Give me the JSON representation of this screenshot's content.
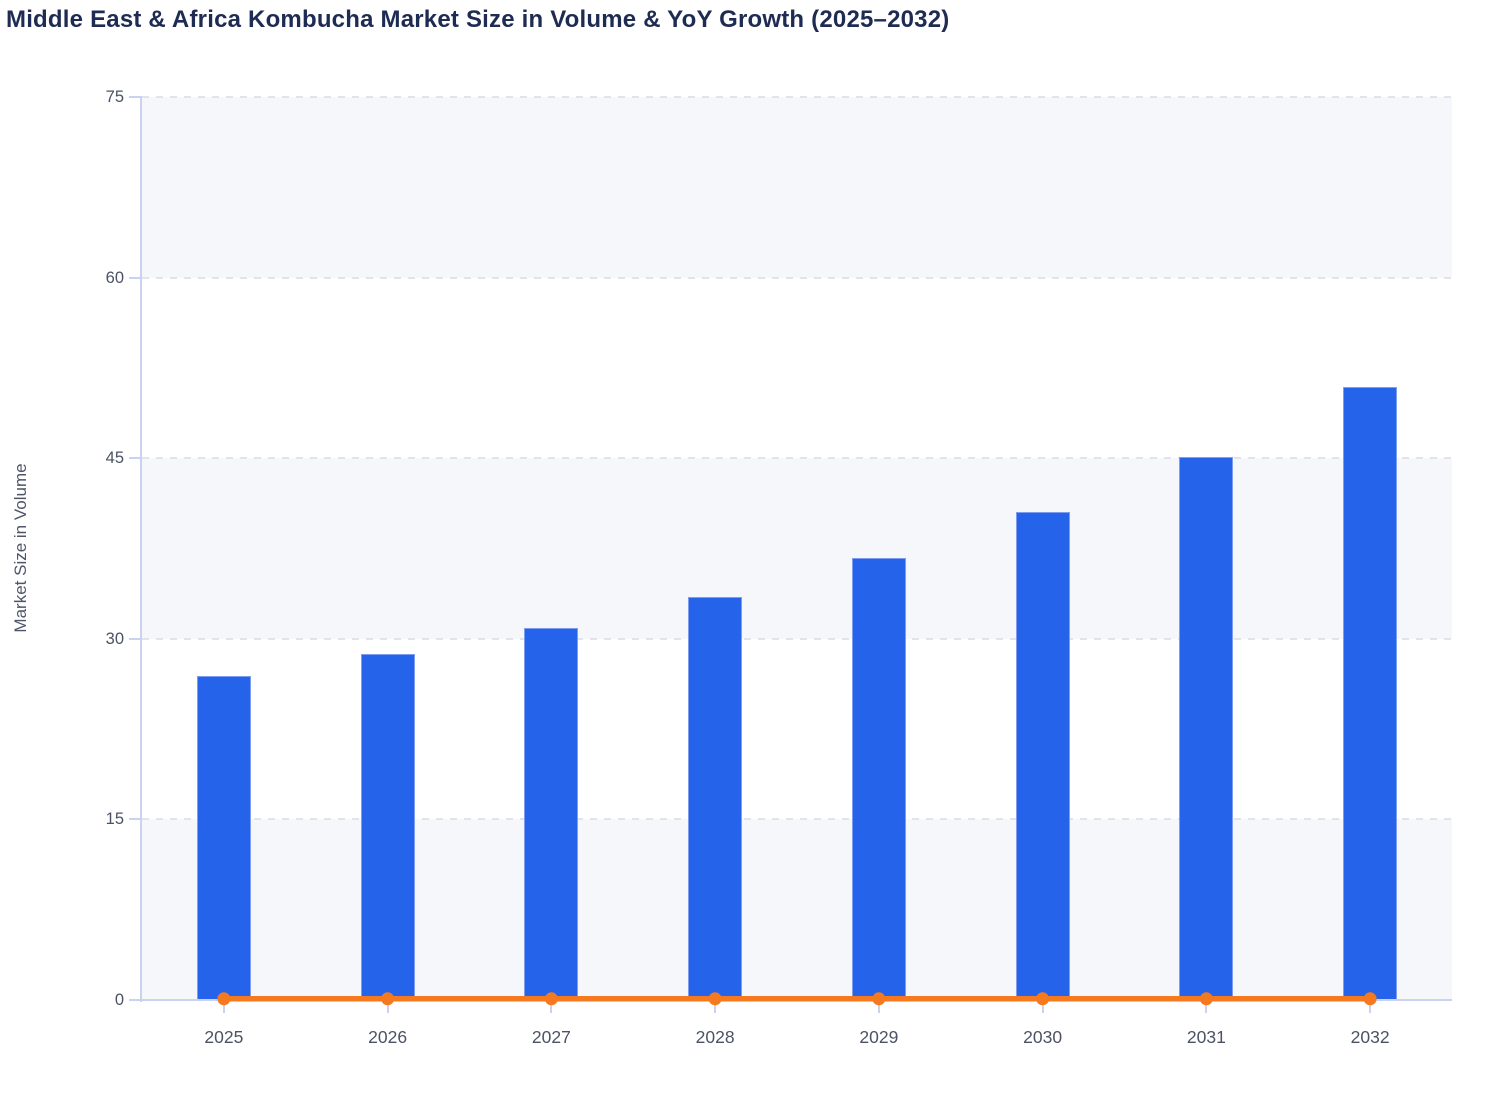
{
  "chart_data": {
    "type": "bar",
    "title": "Middle East & Africa Kombucha Market Size in Volume & YoY Growth (2025–2032)",
    "ylabel": "Market Size in Volume",
    "xlabel": "",
    "categories": [
      "2025",
      "2026",
      "2027",
      "2028",
      "2029",
      "2030",
      "2031",
      "2032"
    ],
    "series": [
      {
        "name": "Market Size in Volume",
        "type": "bar",
        "color": "#2563ea",
        "values": [
          26.9,
          28.7,
          30.9,
          33.5,
          36.7,
          40.5,
          45.1,
          50.9
        ]
      },
      {
        "name": "YoY Growth",
        "type": "line",
        "color": "#f4791f",
        "values": [
          0.1,
          0.1,
          0.1,
          0.1,
          0.1,
          0.1,
          0.1,
          0.1
        ],
        "note": "flat line rendered at ~0 on the left axis with a round marker at each year"
      }
    ],
    "ylim": [
      0,
      75
    ],
    "y_ticks": [
      0,
      15,
      30,
      45,
      60,
      75
    ],
    "grid": "horizontal dashed gridlines at each y tick",
    "plot_background": "alternating horizontal bands of #f6f7fa and #ffffff from top (75-60 shaded, 45-30 shaded, 15-0 shaded)",
    "legend": "none"
  },
  "colors": {
    "bar": "#2563ea",
    "bar_border": "#7e9cf0",
    "line": "#f4791f",
    "axis": "#c9d2f0",
    "gridline": "#e2e4ea",
    "band": "#f6f7fa",
    "title_text": "#1e2b52",
    "tick_text": "#4b5264",
    "axis_label_text": "#4e5568"
  }
}
